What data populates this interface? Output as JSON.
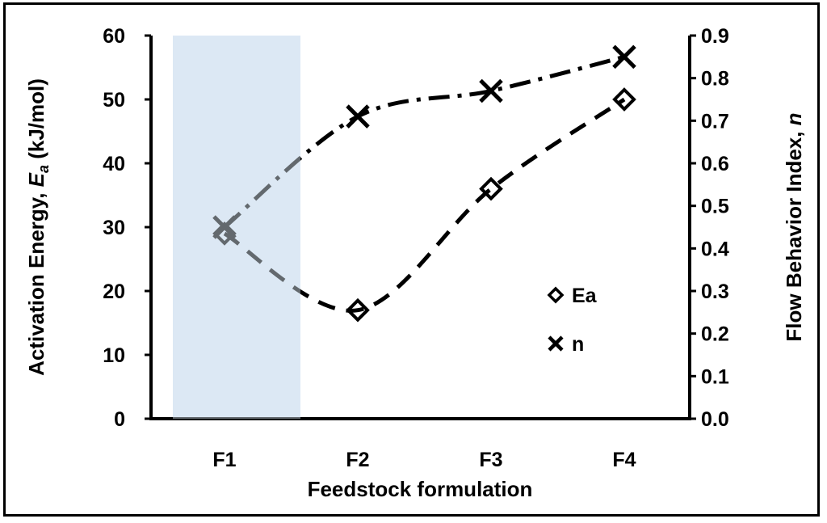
{
  "chart_data": {
    "type": "scatter",
    "categories": [
      "F1",
      "F2",
      "F3",
      "F4"
    ],
    "xlabel": "Feedstock formulation",
    "ylabel_left_prefix": "Activation Energy, ",
    "ylabel_left_symbol": "E",
    "ylabel_left_subscript": "a",
    "ylabel_left_suffix": " (kJ/mol)",
    "ylabel_right_prefix": "Flow Behavior Index, ",
    "ylabel_right_symbol": "n",
    "ylim_left": [
      0,
      60
    ],
    "yticks_left": [
      "0",
      "10",
      "20",
      "30",
      "40",
      "50",
      "60"
    ],
    "ylim_right": [
      0,
      0.9
    ],
    "yticks_right": [
      "0.0",
      "0.1",
      "0.2",
      "0.3",
      "0.4",
      "0.5",
      "0.6",
      "0.7",
      "0.8",
      "0.9"
    ],
    "grid": false,
    "legend_position": "right",
    "highlight_category": "F1",
    "highlight_color": "#dce8f5",
    "series": [
      {
        "name": "Ea",
        "axis": "left",
        "marker": "diamond",
        "values": [
          29,
          17,
          36,
          50
        ],
        "trend": "dashed"
      },
      {
        "name": "n",
        "axis": "right",
        "marker": "x",
        "values": [
          0.45,
          0.71,
          0.77,
          0.85
        ],
        "trend": "dash-dot"
      }
    ]
  }
}
